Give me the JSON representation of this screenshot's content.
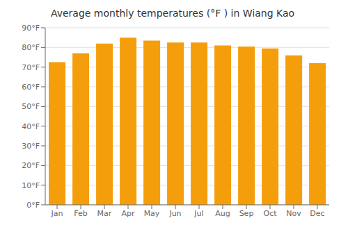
{
  "chart_data": {
    "type": "bar",
    "title": "Average monthly temperatures (°F ) in Wiang Kao",
    "categories": [
      "Jan",
      "Feb",
      "Mar",
      "Apr",
      "May",
      "Jun",
      "Jul",
      "Aug",
      "Sep",
      "Oct",
      "Nov",
      "Dec"
    ],
    "values": [
      72.5,
      77,
      82,
      85,
      83.5,
      82.5,
      82.5,
      81,
      80.5,
      79.5,
      76,
      72
    ],
    "color": "#f59e0b",
    "ylim": [
      0,
      90
    ],
    "yticks": [
      {
        "value": 0,
        "label": "0°F"
      },
      {
        "value": 10,
        "label": "10°F"
      },
      {
        "value": 20,
        "label": "20°F"
      },
      {
        "value": 30,
        "label": "30°F"
      },
      {
        "value": 40,
        "label": "40°F"
      },
      {
        "value": 50,
        "label": "50°F"
      },
      {
        "value": 60,
        "label": "60°F"
      },
      {
        "value": 70,
        "label": "70°F"
      },
      {
        "value": 80,
        "label": "80°F"
      },
      {
        "value": 90,
        "label": "90°F"
      }
    ],
    "grid": true
  }
}
